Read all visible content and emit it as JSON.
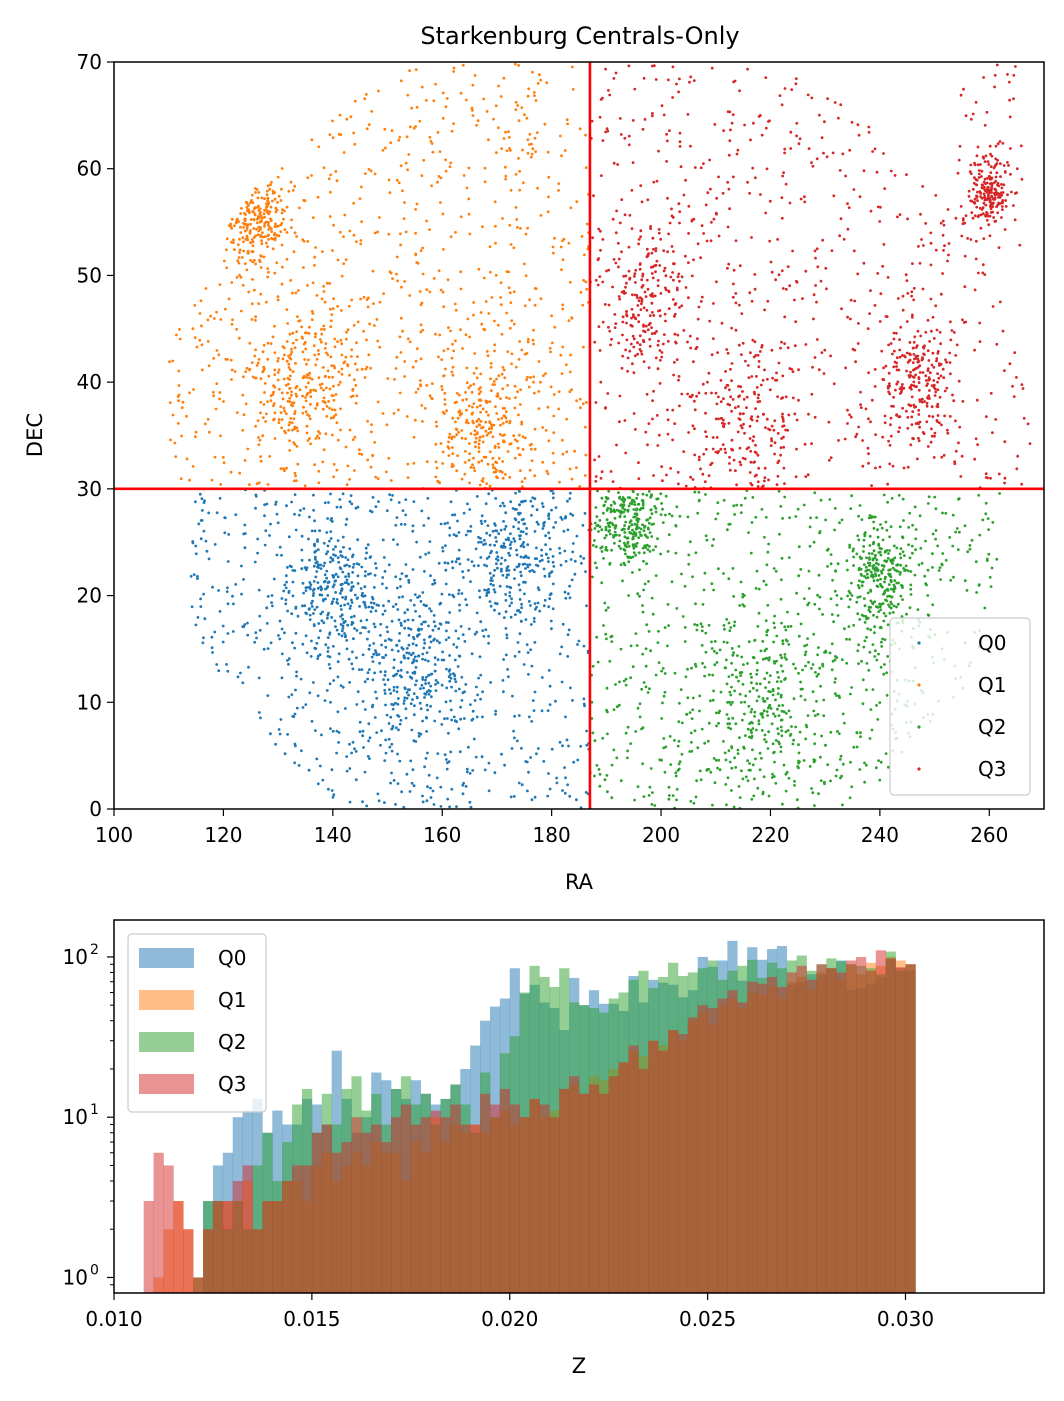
{
  "figure": {
    "title": "Starkenburg Centrals-Only"
  },
  "colors": {
    "Q0": "#1f77b4",
    "Q1": "#ff7f0e",
    "Q2": "#2ca02c",
    "Q3": "#d62728",
    "divider": "#ff0000"
  },
  "chart_data": [
    {
      "type": "scatter",
      "title": "Starkenburg Centrals-Only",
      "xlabel": "RA",
      "ylabel": "DEC",
      "xlim": [
        100,
        270
      ],
      "ylim": [
        0,
        70
      ],
      "xticks": [
        "100",
        "120",
        "140",
        "160",
        "180",
        "200",
        "220",
        "240",
        "260"
      ],
      "yticks": [
        "0",
        "10",
        "20",
        "30",
        "40",
        "50",
        "60",
        "70"
      ],
      "legend_position": "lower-right",
      "grid": false,
      "divider_lines": {
        "vertical_ra": 187,
        "horizontal_dec": 30
      },
      "series": [
        {
          "name": "Q0",
          "region": {
            "ra": [
              114,
              187
            ],
            "dec": [
              0,
              30
            ]
          },
          "clusters": [
            {
              "ra": 173,
              "dec": 24,
              "sigma": 5
            },
            {
              "ra": 155,
              "dec": 13,
              "sigma": 5
            },
            {
              "ra": 140,
              "dec": 20,
              "sigma": 4
            }
          ]
        },
        {
          "name": "Q1",
          "region": {
            "ra": [
              110,
              187
            ],
            "dec": [
              30,
              70
            ]
          },
          "clusters": [
            {
              "ra": 168,
              "dec": 36,
              "sigma": 5
            },
            {
              "ra": 126,
              "dec": 55,
              "sigma": 3
            },
            {
              "ra": 135,
              "dec": 40,
              "sigma": 5
            }
          ]
        },
        {
          "name": "Q2",
          "region": {
            "ra": [
              187,
              262
            ],
            "dec": [
              0,
              30
            ]
          },
          "clusters": [
            {
              "ra": 194,
              "dec": 27,
              "sigma": 3
            },
            {
              "ra": 219,
              "dec": 10,
              "sigma": 5
            },
            {
              "ra": 240,
              "dec": 22,
              "sigma": 3
            }
          ]
        },
        {
          "name": "Q3",
          "region": {
            "ra": [
              187,
              268
            ],
            "dec": [
              30,
              70
            ]
          },
          "clusters": [
            {
              "ra": 247,
              "dec": 40,
              "sigma": 3
            },
            {
              "ra": 260,
              "dec": 58,
              "sigma": 2
            },
            {
              "ra": 215,
              "dec": 36,
              "sigma": 5
            },
            {
              "ra": 197,
              "dec": 47,
              "sigma": 4
            }
          ]
        }
      ]
    },
    {
      "type": "histogram",
      "xlabel": "Z",
      "ylabel": "",
      "xlim": [
        0.01,
        0.0335
      ],
      "yscale": "log",
      "ylim": [
        0.8,
        170
      ],
      "xticks": [
        "0.010",
        "0.015",
        "0.020",
        "0.025",
        "0.030"
      ],
      "yticks": [
        {
          "value": 1,
          "base": "10",
          "exp": "0"
        },
        {
          "value": 10,
          "base": "10",
          "exp": "1"
        },
        {
          "value": 100,
          "base": "10",
          "exp": "2"
        }
      ],
      "legend_position": "upper-left",
      "bin_start": 0.0105,
      "bin_width": 0.00025,
      "series": [
        {
          "name": "Q0",
          "opacity": 0.5,
          "values": [
            0,
            0,
            0,
            0,
            0,
            0,
            0,
            3,
            5,
            6,
            10,
            11,
            13,
            8,
            11,
            9,
            9,
            13,
            12,
            9,
            26,
            13,
            8,
            10,
            19,
            17,
            15,
            13,
            17,
            14,
            12,
            13,
            16,
            20,
            28,
            40,
            49,
            55,
            85,
            59,
            67,
            52,
            48,
            35,
            74,
            50,
            62,
            51,
            51,
            46,
            76,
            52,
            72,
            69,
            67,
            56,
            62,
            100,
            87,
            95,
            126,
            71,
            115,
            96,
            112,
            117,
            67,
            70,
            78,
            77,
            85,
            95,
            62,
            64,
            68,
            75,
            97,
            86,
            82
          ]
        },
        {
          "name": "Q1",
          "opacity": 0.5,
          "values": [
            0,
            0,
            1,
            2,
            3,
            2,
            1,
            2,
            3,
            3,
            3,
            4,
            2,
            3,
            3,
            4,
            4,
            3,
            5,
            6,
            4,
            5,
            6,
            5,
            7,
            6,
            6,
            4,
            7,
            6,
            10,
            7,
            9,
            8,
            9,
            8,
            10,
            11,
            9,
            10,
            13,
            10,
            11,
            15,
            16,
            14,
            18,
            17,
            20,
            22,
            26,
            24,
            30,
            28,
            35,
            30,
            40,
            45,
            38,
            50,
            55,
            48,
            60,
            58,
            65,
            55,
            70,
            75,
            62,
            80,
            85,
            72,
            90,
            78,
            92,
            88,
            100,
            95,
            90
          ]
        },
        {
          "name": "Q2",
          "opacity": 0.5,
          "values": [
            0,
            0,
            0,
            0,
            0,
            0,
            1,
            3,
            3,
            2,
            3,
            2,
            5,
            8,
            4,
            7,
            12,
            15,
            8,
            14,
            9,
            15,
            18,
            11,
            14,
            9,
            15,
            18,
            12,
            14,
            9,
            13,
            16,
            12,
            8,
            19,
            10,
            25,
            32,
            60,
            88,
            75,
            65,
            85,
            52,
            50,
            48,
            45,
            55,
            60,
            72,
            82,
            64,
            75,
            92,
            76,
            80,
            85,
            95,
            72,
            82,
            88,
            96,
            74,
            92,
            85,
            95,
            102,
            82,
            90,
            98,
            94,
            90,
            88,
            85,
            78,
            108,
            82,
            90
          ]
        },
        {
          "name": "Q3",
          "opacity": 0.5,
          "values": [
            0,
            3,
            6,
            5,
            3,
            2,
            1,
            2,
            3,
            3,
            4,
            5,
            2,
            3,
            3,
            4,
            5,
            5,
            8,
            9,
            6,
            7,
            10,
            8,
            9,
            7,
            10,
            12,
            9,
            10,
            11,
            10,
            12,
            9,
            9,
            14,
            12,
            15,
            12,
            10,
            13,
            12,
            10,
            15,
            18,
            14,
            16,
            14,
            18,
            22,
            28,
            20,
            30,
            26,
            35,
            33,
            42,
            50,
            48,
            55,
            62,
            52,
            70,
            68,
            75,
            65,
            80,
            88,
            72,
            90,
            85,
            80,
            95,
            100,
            82,
            110,
            98,
            86,
            90
          ]
        }
      ]
    }
  ]
}
